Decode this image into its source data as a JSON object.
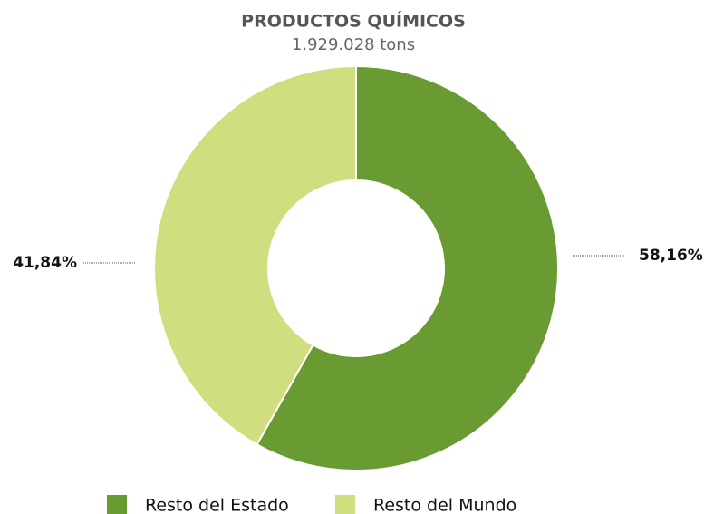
{
  "chart_data": {
    "type": "donut",
    "title": "PRODUCTOS QUÍMICOS",
    "subtitle": "1.929.028 tons",
    "categories": [
      "Resto del Estado",
      "Resto del Mundo"
    ],
    "values": [
      58.16,
      41.84
    ],
    "value_labels": [
      "58,16%",
      "41,84%"
    ],
    "colors": [
      "#6a9a32",
      "#d1de80"
    ],
    "legend": "bottom"
  }
}
